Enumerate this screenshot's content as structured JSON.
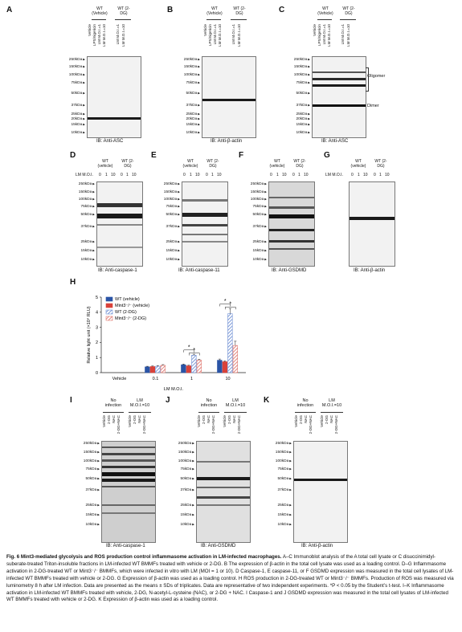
{
  "panels": {
    "A": {
      "letter": "A",
      "groups": [
        "WT (Vehicle)",
        "WT (2-DG)"
      ],
      "lanes": [
        "Vehicle",
        "LPS/nigericin",
        "LM M.O.I.=1",
        "LM M.O.I.=10",
        "LM M.O.I.=1",
        "LM M.O.I.=10"
      ],
      "caption": "IB: Anti-ASC"
    },
    "B": {
      "letter": "B",
      "groups": [
        "WT (Vehicle)",
        "WT (2-DG)"
      ],
      "lanes": [
        "Vehicle",
        "LPS/nigericin",
        "LM M.O.I.=1",
        "LM M.O.I.=10",
        "LM M.O.I.=1",
        "LM M.O.I.=10"
      ],
      "caption": "IB: Anti-β-actin"
    },
    "C": {
      "letter": "C",
      "groups": [
        "WT (Vehicle)",
        "WT (2-DG)"
      ],
      "lanes": [
        "Vehicle",
        "LPS/nigericin",
        "LM M.O.I.=1",
        "LM M.O.I.=10",
        "LM M.O.I.=1",
        "LM M.O.I.=10"
      ],
      "caption": "IB: Anti-ASC",
      "labels": [
        "Oligomer",
        "Dimer"
      ]
    },
    "D": {
      "letter": "D",
      "groups": [
        "WT (vehicle)",
        "WT (2-DG)"
      ],
      "moi_label": "LM M.O.I.",
      "moi": [
        "0",
        "1",
        "10",
        "0",
        "1",
        "10"
      ],
      "caption": "IB: Anti-caspase-1"
    },
    "E": {
      "letter": "E",
      "groups": [
        "WT (vehicle)",
        "WT (2-DG)"
      ],
      "moi_label": "LM M.O.I.",
      "moi": [
        "0",
        "1",
        "10",
        "0",
        "1",
        "10"
      ],
      "caption": "IB: Anti-caspase-11"
    },
    "F": {
      "letter": "F",
      "groups": [
        "WT (vehicle)",
        "WT (2-DG)"
      ],
      "moi_label": "LM M.O.I.",
      "moi": [
        "0",
        "1",
        "10",
        "0",
        "1",
        "10"
      ],
      "caption": "IB: Anti-GSDMD"
    },
    "G": {
      "letter": "G",
      "groups": [
        "WT (vehicle)",
        "WT (2-DG)"
      ],
      "moi_label": "LM M.O.I.",
      "moi": [
        "0",
        "1",
        "10",
        "0",
        "1",
        "10"
      ],
      "caption": "IB: Anti-β-actin"
    },
    "H": {
      "letter": "H"
    },
    "I": {
      "letter": "I",
      "groups": [
        "No infection",
        "LM M.O.I.=10"
      ],
      "lanes": [
        "Vehicle",
        "2-DG",
        "NAC",
        "2-DG+NAC",
        "Vehicle",
        "2-DG",
        "NAC",
        "2-DG+NAC"
      ],
      "caption": "IB: Anti-caspase-1"
    },
    "J": {
      "letter": "J",
      "groups": [
        "No infection",
        "LM M.O.I.=10"
      ],
      "lanes": [
        "Vehicle",
        "2-DG",
        "NAC",
        "2-DG+NAC",
        "Vehicle",
        "2-DG",
        "NAC",
        "2-DG+NAC"
      ],
      "caption": "IB: Anti-GSDMD"
    },
    "K": {
      "letter": "K",
      "groups": [
        "No infection",
        "LM M.O.I.=10"
      ],
      "lanes": [
        "Vehicle",
        "2-DG",
        "NAC",
        "2-DG+NAC",
        "Vehicle",
        "2-DG",
        "NAC",
        "2-DG+NAC"
      ],
      "caption": "IB: Anti-β-actin"
    }
  },
  "markers_full": [
    "250kDa",
    "150kDa",
    "100kDa",
    "75kDa",
    "50kDa",
    "37kDa",
    "25kDa",
    "20kDa",
    "15kDa",
    "10kDa"
  ],
  "markers_short": [
    "250kDa",
    "150kDa",
    "100kDa",
    "75kDa",
    "50kDa",
    "37kDa",
    "25kDa",
    "15kDa",
    "10kDa"
  ],
  "chart_data": {
    "type": "bar",
    "ylabel": "Relative light unit (×10⁴ RLU)",
    "xlabel": "LM M.O.I.",
    "categories": [
      "Vehicle",
      "0.1",
      "1",
      "10"
    ],
    "ylim": [
      0,
      5
    ],
    "yticks": [
      "0",
      "1",
      "2",
      "3",
      "4",
      "5"
    ],
    "series": [
      {
        "name": "WT (vehicle)",
        "color": "#2a54a6",
        "pattern": "solid",
        "values": [
          0,
          0.38,
          0.52,
          0.82
        ],
        "errors": [
          0,
          0.04,
          0.05,
          0.08
        ]
      },
      {
        "name": "Mint3⁻/⁻ (vehicle)",
        "color": "#d9423a",
        "pattern": "solid",
        "values": [
          0,
          0.4,
          0.45,
          0.72
        ],
        "errors": [
          0,
          0.04,
          0.04,
          0.06
        ]
      },
      {
        "name": "WT (2-DG)",
        "color": "#6f8fd4",
        "pattern": "hatch",
        "values": [
          0,
          0.42,
          1.15,
          3.9
        ],
        "errors": [
          0,
          0.05,
          0.07,
          0.35
        ]
      },
      {
        "name": "Mint3⁻/⁻ (2-DG)",
        "color": "#e07a72",
        "pattern": "hatch",
        "values": [
          0,
          0.48,
          0.82,
          1.8
        ],
        "errors": [
          0,
          0.05,
          0.06,
          0.28
        ]
      }
    ],
    "significance": [
      "*",
      "*",
      "*",
      "*"
    ]
  },
  "caption": {
    "title": "Fig. 6 Mint3-mediated glycolysis and ROS production control inflammasome activation in LM-infected macrophages.",
    "body": " A–C Immunoblot analysis of the A total cell lysate or C disuccinimidyl-suberate-treated Triton-insoluble fractions in LM-infected WT BMMFs treated with vehicle or 2-DG. B The expression of β-actin in the total cell lysate was used as a loading control. D–G Inflammasome activation in 2-DG-treated WT or Mint3⁻/⁻ BMMFs, which were infected in vitro with LM (MOI = 1 or 10). D Caspase-1, E caspase-11, or F GSDMD expression was measured in the total cell lysates of LM-infected WT BMMFs treated with vehicle or 2-DG. G Expression of β-actin was used as a loading control. H ROS production in 2-DG-treated WT or Mint3⁻/⁻ BMMFs. Production of ROS was measured via luminometry 8 h after LM infection. Data are presented as the means ± SDs of triplicates. Data are representative of two independent experiments. *P < 0.05 by the Student’s t-test. I–K Inflammasome activation in LM-infected WT BMMFs treated with vehicle, 2-DG, N-acetyl-L-cysteine (NAC), or 2-DG + NAC. I Caspase-1 and J GSDMD expression was measured in the total cell lysates of LM-infected WT BMMFs treated with vehicle or 2-DG. K Expression of β-actin was used as a loading control."
  }
}
